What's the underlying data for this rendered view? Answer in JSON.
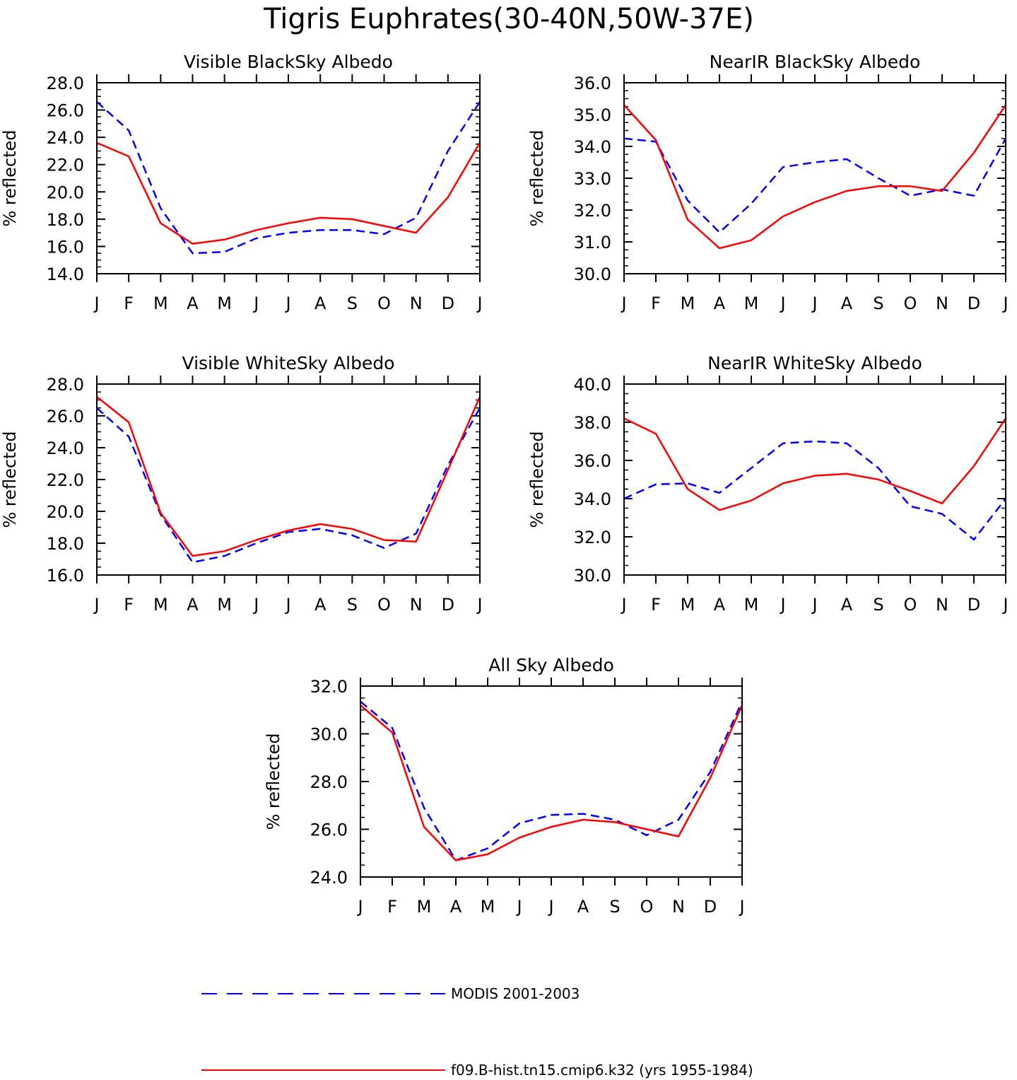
{
  "title": "Tigris Euphrates(30-40N,50W-37E)",
  "legend": {
    "items": [
      {
        "label": "MODIS 2001-2003",
        "color": "#0000ff",
        "dash": true
      },
      {
        "label": "f09.B-hist.tn15.cmip6.k32 (yrs 1955-1984)",
        "color": "#ff0000",
        "dash": false
      }
    ]
  },
  "chart_data": [
    {
      "type": "line",
      "title": "Visible BlackSky Albedo",
      "ylabel": "% reflected",
      "categories": [
        "J",
        "F",
        "M",
        "A",
        "M",
        "J",
        "J",
        "A",
        "S",
        "O",
        "N",
        "D",
        "J"
      ],
      "ylim": [
        14,
        28
      ],
      "yticks": [
        "14.0",
        "16.0",
        "18.0",
        "20.0",
        "22.0",
        "24.0",
        "26.0",
        "28.0"
      ],
      "series": [
        {
          "name": "MODIS 2001-2003",
          "values": [
            26.6,
            24.5,
            18.8,
            15.5,
            15.6,
            16.6,
            17.0,
            17.2,
            17.2,
            16.9,
            18.1,
            23.0,
            26.6
          ]
        },
        {
          "name": "f09.B-hist.tn15.cmip6.k32 (yrs 1955-1984)",
          "values": [
            23.6,
            22.6,
            17.7,
            16.2,
            16.5,
            17.2,
            17.7,
            18.1,
            18.0,
            17.5,
            17.0,
            19.6,
            23.6
          ]
        }
      ]
    },
    {
      "type": "line",
      "title": "NearIR BlackSky Albedo",
      "ylabel": "% reflected",
      "categories": [
        "J",
        "F",
        "M",
        "A",
        "M",
        "J",
        "J",
        "A",
        "S",
        "O",
        "N",
        "D",
        "J"
      ],
      "ylim": [
        30,
        36
      ],
      "yticks": [
        "30.0",
        "31.0",
        "32.0",
        "33.0",
        "34.0",
        "35.0",
        "36.0"
      ],
      "series": [
        {
          "name": "MODIS 2001-2003",
          "values": [
            34.25,
            34.15,
            32.3,
            31.3,
            32.2,
            33.35,
            33.5,
            33.6,
            33.0,
            32.45,
            32.65,
            32.45,
            34.25
          ]
        },
        {
          "name": "f09.B-hist.tn15.cmip6.k32 (yrs 1955-1984)",
          "values": [
            35.3,
            34.2,
            31.7,
            30.8,
            31.05,
            31.8,
            32.25,
            32.6,
            32.75,
            32.75,
            32.6,
            33.8,
            35.3
          ]
        }
      ]
    },
    {
      "type": "line",
      "title": "Visible WhiteSky Albedo",
      "ylabel": "% reflected",
      "categories": [
        "J",
        "F",
        "M",
        "A",
        "M",
        "J",
        "J",
        "A",
        "S",
        "O",
        "N",
        "D",
        "J"
      ],
      "ylim": [
        16,
        28
      ],
      "yticks": [
        "16.0",
        "18.0",
        "20.0",
        "22.0",
        "24.0",
        "26.0",
        "28.0"
      ],
      "series": [
        {
          "name": "MODIS 2001-2003",
          "values": [
            26.5,
            24.7,
            19.8,
            16.8,
            17.2,
            18.0,
            18.7,
            18.9,
            18.5,
            17.7,
            18.6,
            22.9,
            26.5
          ]
        },
        {
          "name": "f09.B-hist.tn15.cmip6.k32 (yrs 1955-1984)",
          "values": [
            27.2,
            25.6,
            19.9,
            17.2,
            17.5,
            18.2,
            18.8,
            19.2,
            18.9,
            18.2,
            18.1,
            22.6,
            27.2
          ]
        }
      ]
    },
    {
      "type": "line",
      "title": "NearIR WhiteSky Albedo",
      "ylabel": "% reflected",
      "categories": [
        "J",
        "F",
        "M",
        "A",
        "M",
        "J",
        "J",
        "A",
        "S",
        "O",
        "N",
        "D",
        "J"
      ],
      "ylim": [
        30,
        40
      ],
      "yticks": [
        "30.0",
        "32.0",
        "34.0",
        "36.0",
        "38.0",
        "40.0"
      ],
      "series": [
        {
          "name": "MODIS 2001-2003",
          "values": [
            34.0,
            34.75,
            34.8,
            34.3,
            35.6,
            36.9,
            37.0,
            36.9,
            35.6,
            33.6,
            33.2,
            31.85,
            34.0
          ]
        },
        {
          "name": "f09.B-hist.tn15.cmip6.k32 (yrs 1955-1984)",
          "values": [
            38.2,
            37.4,
            34.5,
            33.4,
            33.9,
            34.8,
            35.2,
            35.3,
            35.0,
            34.4,
            33.75,
            35.7,
            38.2
          ]
        }
      ]
    },
    {
      "type": "line",
      "title": "All Sky Albedo",
      "ylabel": "% reflected",
      "categories": [
        "J",
        "F",
        "M",
        "A",
        "M",
        "J",
        "J",
        "A",
        "S",
        "O",
        "N",
        "D",
        "J"
      ],
      "ylim": [
        24,
        32
      ],
      "yticks": [
        "24.0",
        "26.0",
        "28.0",
        "30.0",
        "32.0"
      ],
      "series": [
        {
          "name": "MODIS 2001-2003",
          "values": [
            31.35,
            30.25,
            26.9,
            24.7,
            25.2,
            26.25,
            26.6,
            26.65,
            26.4,
            25.75,
            26.4,
            28.4,
            31.35
          ]
        },
        {
          "name": "f09.B-hist.tn15.cmip6.k32 (yrs 1955-1984)",
          "values": [
            31.2,
            30.05,
            26.1,
            24.7,
            24.95,
            25.65,
            26.1,
            26.4,
            26.3,
            26.0,
            25.7,
            28.15,
            31.2
          ]
        }
      ]
    }
  ]
}
